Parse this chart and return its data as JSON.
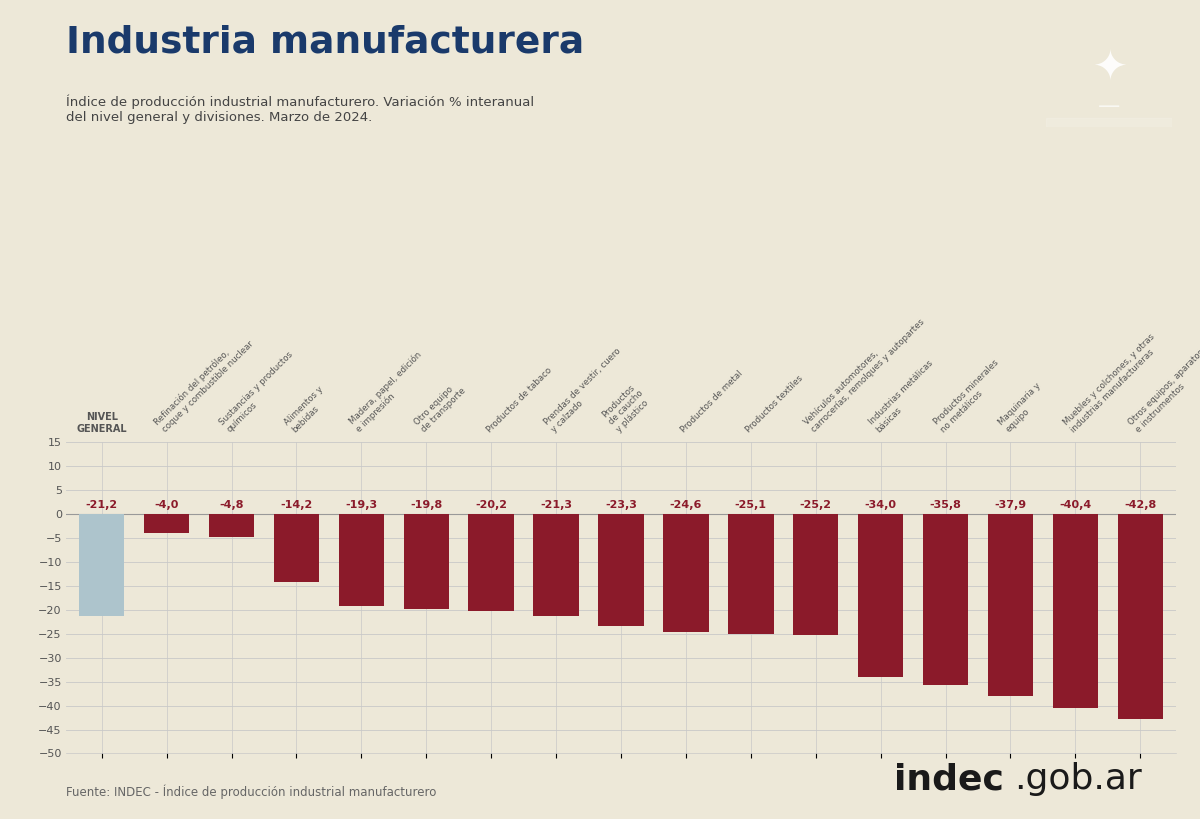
{
  "title": "Industria manufacturera",
  "subtitle": "Índice de producción industrial manufacturero. Variación % interanual\ndel nivel general y divisiones. Marzo de 2024.",
  "categories": [
    "NIVEL\nGENERAL",
    "Refinación del petróleo,\ncoque y combustible nuclear",
    "Sustancias y productos\nquímicos",
    "Alimentos y\nbebidas",
    "Madera, papel, edición\ne impresión",
    "Otro equipo\nde transporte",
    "Productos de tabaco",
    "Prendas de vestir, cuero\ny calzado",
    "Productos\nde caucho\ny plástico",
    "Productos de metal",
    "Productos textiles",
    "Vehículos automotores,\ncarrocerías, remolques y autopartes",
    "Industrias metálicas\nbásicas",
    "Productos minerales\nno metálicos",
    "Maquinaria y\nequipo",
    "Muebles y colchones, y otras\nindustrias manufactureras",
    "Otros equipos, aparatos\ne instrumentos"
  ],
  "values": [
    -21.2,
    -4.0,
    -4.8,
    -14.2,
    -19.3,
    -19.8,
    -20.2,
    -21.3,
    -23.3,
    -24.6,
    -25.1,
    -25.2,
    -34.0,
    -35.8,
    -37.9,
    -40.4,
    -42.8
  ],
  "bar_color_general": "#adc4cc",
  "bar_color_normal": "#8b1a2a",
  "value_color": "#8b1a2a",
  "title_color": "#1a3a6b",
  "subtitle_color": "#444444",
  "background_color": "#ede8d8",
  "grid_color": "#c8c8c8",
  "label_color": "#555555",
  "ylim_min": -50,
  "ylim_max": 15,
  "footer_text": "Fuente: INDEC - Índice de producción industrial manufacturero",
  "logo_bg_color": "#1a3a6b"
}
